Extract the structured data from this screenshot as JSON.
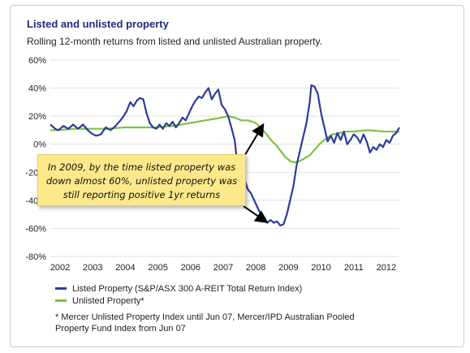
{
  "header": {
    "title": "Listed and unlisted property",
    "subtitle": "Rolling 12-month returns from listed and unlisted Australian property."
  },
  "colors": {
    "listed": "#2b3b9b",
    "unlisted": "#7cc242",
    "title": "#1f2b7a",
    "note_bg": "#fde98c"
  },
  "annotation": {
    "text": "In 2009, by the time listed property was\ndown almost 60%, unlisted property was\nstill reporting positive 1yr returns"
  },
  "footnote": "* Mercer Unlisted Property Index until Jun 07,  Mercer/IPD Australian Pooled\nProperty Fund Index from Jun 07",
  "chart_data": {
    "type": "line",
    "title": "Listed and unlisted property",
    "subtitle": "Rolling 12-month returns from listed and unlisted Australian property.",
    "ylim": [
      -80,
      60
    ],
    "xlim": [
      2001.75,
      2012.45
    ],
    "yticks": [
      60,
      40,
      20,
      0,
      -20,
      -40,
      -60,
      -80
    ],
    "ytick_labels": [
      "60%",
      "40%",
      "20%",
      "0%",
      "-20%",
      "-40%",
      "-60%",
      "-80%"
    ],
    "xticks": [
      2002,
      2003,
      2004,
      2005,
      2006,
      2007,
      2008,
      2009,
      2010,
      2011,
      2012
    ],
    "xtick_labels": [
      "2002",
      "2003",
      "2004",
      "2005",
      "2006",
      "2007",
      "2008",
      "2009",
      "2010",
      "2011",
      "2012"
    ],
    "grid": "horizontal",
    "legend_position": "bottom-left",
    "series": [
      {
        "name": "Listed Property (S&P/ASX 300 A-REIT Total Return Index)",
        "color": "#2b3b9b",
        "points": [
          [
            2001.75,
            14
          ],
          [
            2001.9,
            11
          ],
          [
            2002.0,
            10
          ],
          [
            2002.15,
            13
          ],
          [
            2002.3,
            11
          ],
          [
            2002.45,
            14
          ],
          [
            2002.6,
            11
          ],
          [
            2002.75,
            14
          ],
          [
            2002.9,
            10
          ],
          [
            2003.0,
            8
          ],
          [
            2003.15,
            6
          ],
          [
            2003.3,
            7
          ],
          [
            2003.45,
            12
          ],
          [
            2003.6,
            10
          ],
          [
            2003.75,
            13
          ],
          [
            2003.9,
            17
          ],
          [
            2004.0,
            20
          ],
          [
            2004.1,
            24
          ],
          [
            2004.2,
            30
          ],
          [
            2004.3,
            27
          ],
          [
            2004.4,
            31
          ],
          [
            2004.5,
            33
          ],
          [
            2004.6,
            32
          ],
          [
            2004.7,
            22
          ],
          [
            2004.8,
            15
          ],
          [
            2004.9,
            12
          ],
          [
            2005.0,
            11
          ],
          [
            2005.1,
            14
          ],
          [
            2005.2,
            11
          ],
          [
            2005.3,
            15
          ],
          [
            2005.4,
            13
          ],
          [
            2005.5,
            16
          ],
          [
            2005.6,
            12
          ],
          [
            2005.7,
            15
          ],
          [
            2005.8,
            19
          ],
          [
            2005.9,
            17
          ],
          [
            2006.0,
            22
          ],
          [
            2006.1,
            27
          ],
          [
            2006.2,
            31
          ],
          [
            2006.3,
            34
          ],
          [
            2006.4,
            33
          ],
          [
            2006.5,
            37
          ],
          [
            2006.6,
            40
          ],
          [
            2006.7,
            32
          ],
          [
            2006.8,
            36
          ],
          [
            2006.9,
            39
          ],
          [
            2007.0,
            28
          ],
          [
            2007.1,
            25
          ],
          [
            2007.2,
            20
          ],
          [
            2007.3,
            12
          ],
          [
            2007.4,
            3
          ],
          [
            2007.5,
            -18
          ],
          [
            2007.55,
            -22
          ],
          [
            2007.6,
            -28
          ],
          [
            2007.7,
            -25
          ],
          [
            2007.8,
            -32
          ],
          [
            2007.9,
            -35
          ],
          [
            2008.0,
            -40
          ],
          [
            2008.1,
            -45
          ],
          [
            2008.2,
            -50
          ],
          [
            2008.3,
            -52
          ],
          [
            2008.4,
            -56
          ],
          [
            2008.5,
            -54
          ],
          [
            2008.6,
            -56
          ],
          [
            2008.7,
            -55
          ],
          [
            2008.8,
            -58
          ],
          [
            2008.9,
            -57
          ],
          [
            2009.0,
            -50
          ],
          [
            2009.1,
            -40
          ],
          [
            2009.2,
            -30
          ],
          [
            2009.3,
            -15
          ],
          [
            2009.4,
            -5
          ],
          [
            2009.5,
            5
          ],
          [
            2009.6,
            15
          ],
          [
            2009.7,
            30
          ],
          [
            2009.75,
            42
          ],
          [
            2009.85,
            41
          ],
          [
            2009.95,
            36
          ],
          [
            2010.05,
            22
          ],
          [
            2010.15,
            12
          ],
          [
            2010.25,
            2
          ],
          [
            2010.35,
            6
          ],
          [
            2010.45,
            1
          ],
          [
            2010.55,
            8
          ],
          [
            2010.65,
            3
          ],
          [
            2010.75,
            9
          ],
          [
            2010.85,
            0
          ],
          [
            2010.95,
            3
          ],
          [
            2011.05,
            7
          ],
          [
            2011.15,
            5
          ],
          [
            2011.25,
            1
          ],
          [
            2011.35,
            7
          ],
          [
            2011.45,
            2
          ],
          [
            2011.55,
            -6
          ],
          [
            2011.65,
            -2
          ],
          [
            2011.75,
            -4
          ],
          [
            2011.85,
            0
          ],
          [
            2011.95,
            -2
          ],
          [
            2012.05,
            3
          ],
          [
            2012.15,
            1
          ],
          [
            2012.25,
            6
          ],
          [
            2012.35,
            8
          ],
          [
            2012.45,
            12
          ]
        ]
      },
      {
        "name": "Unlisted Property*",
        "color": "#7cc242",
        "points": [
          [
            2001.75,
            10
          ],
          [
            2002.0,
            10
          ],
          [
            2002.5,
            11
          ],
          [
            2003.0,
            11
          ],
          [
            2003.5,
            11
          ],
          [
            2004.0,
            12
          ],
          [
            2004.5,
            12
          ],
          [
            2005.0,
            12
          ],
          [
            2005.5,
            13
          ],
          [
            2006.0,
            15
          ],
          [
            2006.5,
            17
          ],
          [
            2007.0,
            19
          ],
          [
            2007.2,
            20
          ],
          [
            2007.4,
            19
          ],
          [
            2007.6,
            17
          ],
          [
            2007.8,
            17
          ],
          [
            2007.95,
            16
          ],
          [
            2008.05,
            15
          ],
          [
            2008.15,
            13
          ],
          [
            2008.25,
            10
          ],
          [
            2008.35,
            8
          ],
          [
            2008.45,
            5
          ],
          [
            2008.55,
            2
          ],
          [
            2008.65,
            0
          ],
          [
            2008.75,
            -3
          ],
          [
            2008.85,
            -6
          ],
          [
            2008.95,
            -9
          ],
          [
            2009.1,
            -12
          ],
          [
            2009.25,
            -13
          ],
          [
            2009.4,
            -12
          ],
          [
            2009.55,
            -10
          ],
          [
            2009.7,
            -8
          ],
          [
            2009.85,
            -4
          ],
          [
            2010.0,
            0
          ],
          [
            2010.2,
            4
          ],
          [
            2010.4,
            7
          ],
          [
            2010.6,
            8
          ],
          [
            2010.8,
            9
          ],
          [
            2011.0,
            9
          ],
          [
            2011.5,
            10
          ],
          [
            2012.0,
            9
          ],
          [
            2012.45,
            9
          ]
        ]
      }
    ]
  }
}
